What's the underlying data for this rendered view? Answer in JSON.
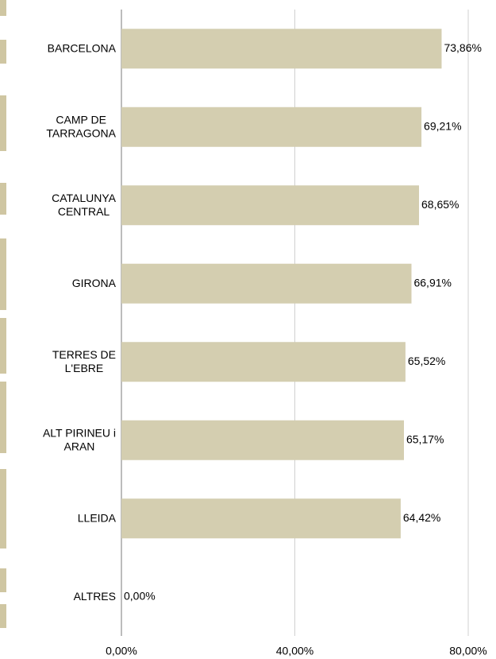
{
  "chart_data": {
    "type": "bar",
    "orientation": "horizontal",
    "categories": [
      [
        "BARCELONA"
      ],
      [
        "CAMP DE",
        "TARRAGONA"
      ],
      [
        "CATALUNYA",
        "CENTRAL"
      ],
      [
        "GIRONA"
      ],
      [
        "TERRES DE",
        "L'EBRE"
      ],
      [
        "ALT PIRINEU i",
        "ARAN"
      ],
      [
        "LLEIDA"
      ],
      [
        "ALTRES"
      ]
    ],
    "values": [
      73.86,
      69.21,
      68.65,
      66.91,
      65.52,
      65.17,
      64.42,
      0
    ],
    "value_labels": [
      "73,86%",
      "69,21%",
      "68,65%",
      "66,91%",
      "65,52%",
      "65,17%",
      "64,42%",
      "0,00%"
    ],
    "color": "#d4ceb0",
    "xlim": [
      0,
      80
    ],
    "xticks": [
      {
        "value": 0,
        "label": "0,00%"
      },
      {
        "value": 40,
        "label": "40,00%"
      },
      {
        "value": 80,
        "label": "80,00%"
      }
    ],
    "grid": true
  }
}
